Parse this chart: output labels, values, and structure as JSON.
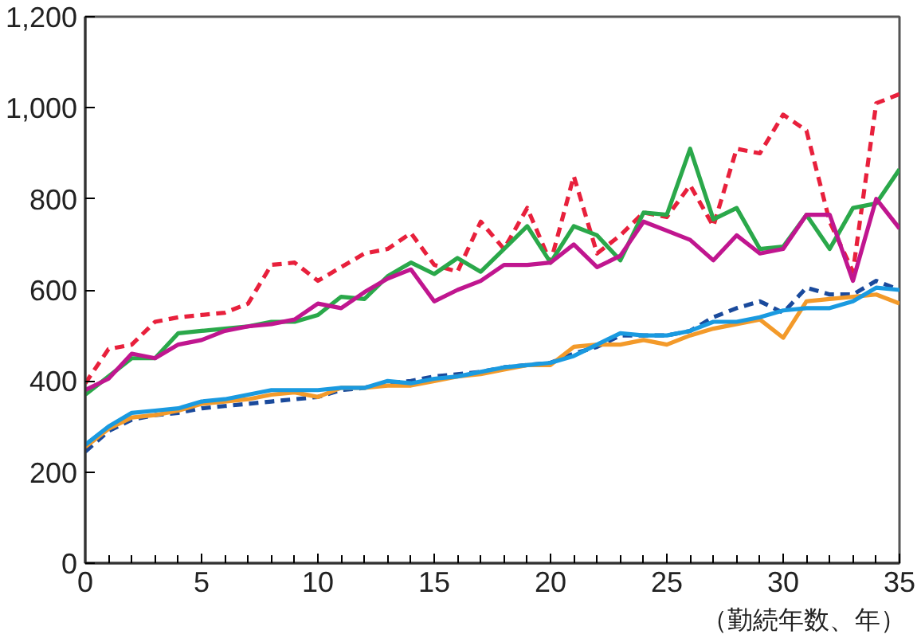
{
  "chart_data": {
    "type": "line",
    "xlabel": "（勤続年数、年）",
    "x": [
      0,
      1,
      2,
      3,
      4,
      5,
      6,
      7,
      8,
      9,
      10,
      11,
      12,
      13,
      14,
      15,
      16,
      17,
      18,
      19,
      20,
      21,
      22,
      23,
      24,
      25,
      26,
      27,
      28,
      29,
      30,
      31,
      32,
      33,
      34,
      35
    ],
    "xlim": [
      0,
      35
    ],
    "xticks": [
      0,
      5,
      10,
      15,
      20,
      25,
      30,
      35
    ],
    "ylim": [
      0,
      1200
    ],
    "yticks": [
      0,
      200,
      400,
      600,
      800,
      {
        "value": 1000,
        "label": "1,000"
      },
      {
        "value": 1200,
        "label": "1,200"
      }
    ],
    "grid": false,
    "marker": "none",
    "series": [
      {
        "color": "#e8203c",
        "line_style": "dashed",
        "values": [
          395,
          470,
          480,
          530,
          540,
          545,
          550,
          570,
          655,
          660,
          620,
          650,
          680,
          690,
          725,
          655,
          640,
          750,
          690,
          780,
          660,
          850,
          680,
          720,
          770,
          760,
          830,
          740,
          910,
          900,
          985,
          950,
          750,
          640,
          1010,
          1030
        ]
      },
      {
        "color": "#2aa84a",
        "line_style": "solid",
        "values": [
          370,
          410,
          450,
          450,
          505,
          510,
          515,
          520,
          530,
          530,
          545,
          585,
          580,
          630,
          660,
          635,
          670,
          640,
          690,
          740,
          660,
          740,
          720,
          665,
          770,
          765,
          910,
          755,
          780,
          690,
          695,
          765,
          690,
          780,
          790,
          865
        ]
      },
      {
        "color": "#c0168f",
        "line_style": "solid",
        "values": [
          380,
          405,
          460,
          450,
          480,
          490,
          510,
          520,
          525,
          535,
          570,
          560,
          595,
          625,
          645,
          575,
          600,
          620,
          655,
          655,
          660,
          700,
          650,
          675,
          750,
          730,
          710,
          665,
          720,
          680,
          690,
          765,
          765,
          620,
          800,
          735
        ]
      },
      {
        "color": "#1a4a9c",
        "line_style": "dashed",
        "values": [
          245,
          290,
          315,
          325,
          330,
          340,
          345,
          350,
          355,
          360,
          365,
          380,
          385,
          395,
          400,
          410,
          415,
          420,
          430,
          435,
          440,
          460,
          475,
          500,
          500,
          500,
          510,
          540,
          560,
          575,
          550,
          605,
          590,
          590,
          620,
          600
        ]
      },
      {
        "color": "#f39a2a",
        "line_style": "solid",
        "values": [
          255,
          295,
          320,
          325,
          335,
          350,
          355,
          360,
          370,
          375,
          365,
          385,
          385,
          390,
          390,
          400,
          410,
          415,
          425,
          435,
          435,
          475,
          480,
          480,
          490,
          480,
          500,
          515,
          525,
          535,
          495,
          575,
          580,
          585,
          590,
          570
        ]
      },
      {
        "color": "#1a9ae0",
        "line_style": "solid",
        "values": [
          260,
          300,
          330,
          335,
          340,
          355,
          360,
          370,
          380,
          380,
          380,
          385,
          385,
          400,
          395,
          405,
          410,
          420,
          430,
          435,
          440,
          455,
          480,
          505,
          500,
          500,
          510,
          530,
          530,
          540,
          555,
          560,
          560,
          575,
          605,
          600
        ]
      }
    ]
  }
}
